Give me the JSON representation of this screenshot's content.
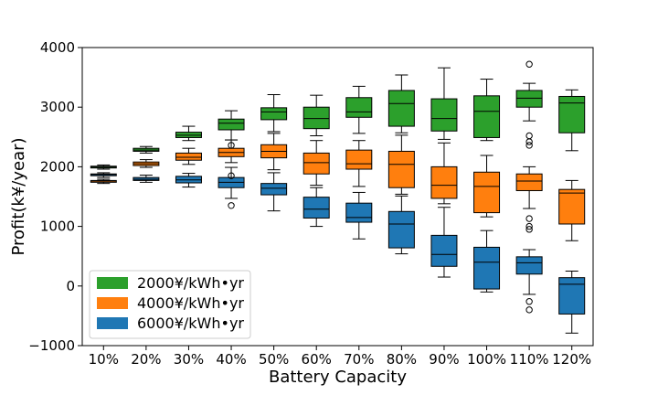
{
  "chart_data": {
    "type": "box",
    "xlabel": "Battery Capacity",
    "ylabel": "Profit(k¥/year)",
    "ylim": [
      -1000,
      4000
    ],
    "yticks": [
      -1000,
      0,
      1000,
      2000,
      3000,
      4000
    ],
    "ytick_labels": [
      "−1000",
      "0",
      "1000",
      "2000",
      "3000",
      "4000"
    ],
    "categories": [
      "10%",
      "20%",
      "30%",
      "40%",
      "50%",
      "60%",
      "70%",
      "80%",
      "90%",
      "100%",
      "110%",
      "120%"
    ],
    "grid": false,
    "legend": {
      "placement": "lower-left"
    },
    "series": [
      {
        "name": "2000¥/kWh•yr",
        "color": "#2ca02c",
        "boxes": [
          {
            "whislo": 1960,
            "q1": 1980,
            "med": 1995,
            "q3": 2010,
            "whishi": 2030,
            "fliers": []
          },
          {
            "whislo": 2230,
            "q1": 2260,
            "med": 2280,
            "q3": 2310,
            "whishi": 2340,
            "fliers": []
          },
          {
            "whislo": 2440,
            "q1": 2490,
            "med": 2530,
            "q3": 2580,
            "whishi": 2680,
            "fliers": []
          },
          {
            "whislo": 2450,
            "q1": 2620,
            "med": 2730,
            "q3": 2800,
            "whishi": 2940,
            "fliers": []
          },
          {
            "whislo": 2590,
            "q1": 2790,
            "med": 2920,
            "q3": 2990,
            "whishi": 3210,
            "fliers": []
          },
          {
            "whislo": 2520,
            "q1": 2640,
            "med": 2810,
            "q3": 3000,
            "whishi": 3200,
            "fliers": []
          },
          {
            "whislo": 2560,
            "q1": 2830,
            "med": 2920,
            "q3": 3160,
            "whishi": 3350,
            "fliers": []
          },
          {
            "whislo": 2570,
            "q1": 2680,
            "med": 3060,
            "q3": 3280,
            "whishi": 3540,
            "fliers": []
          },
          {
            "whislo": 2460,
            "q1": 2600,
            "med": 2810,
            "q3": 3140,
            "whishi": 3660,
            "fliers": []
          },
          {
            "whislo": 2440,
            "q1": 2490,
            "med": 2930,
            "q3": 3190,
            "whishi": 3470,
            "fliers": []
          },
          {
            "whislo": 2770,
            "q1": 3000,
            "med": 3150,
            "q3": 3280,
            "whishi": 3400,
            "fliers": [
              3720,
              2520,
              2420,
              2360
            ]
          },
          {
            "whislo": 2270,
            "q1": 2570,
            "med": 3070,
            "q3": 3180,
            "whishi": 3290,
            "fliers": []
          }
        ]
      },
      {
        "name": "4000¥/kWh•yr",
        "color": "#ff7f0e",
        "boxes": [
          {
            "whislo": 1720,
            "q1": 1740,
            "med": 1760,
            "q3": 1770,
            "whishi": 1790,
            "fliers": []
          },
          {
            "whislo": 1990,
            "q1": 2020,
            "med": 2050,
            "q3": 2080,
            "whishi": 2120,
            "fliers": []
          },
          {
            "whislo": 2040,
            "q1": 2110,
            "med": 2160,
            "q3": 2230,
            "whishi": 2310,
            "fliers": []
          },
          {
            "whislo": 2070,
            "q1": 2170,
            "med": 2240,
            "q3": 2310,
            "whishi": 2450,
            "fliers": [
              2360
            ]
          },
          {
            "whislo": 1950,
            "q1": 2150,
            "med": 2260,
            "q3": 2370,
            "whishi": 2560,
            "fliers": []
          },
          {
            "whislo": 1690,
            "q1": 1880,
            "med": 2070,
            "q3": 2230,
            "whishi": 2440,
            "fliers": []
          },
          {
            "whislo": 1670,
            "q1": 1960,
            "med": 2050,
            "q3": 2280,
            "whishi": 2440,
            "fliers": []
          },
          {
            "whislo": 1540,
            "q1": 1650,
            "med": 2040,
            "q3": 2260,
            "whishi": 2530,
            "fliers": []
          },
          {
            "whislo": 1380,
            "q1": 1470,
            "med": 1690,
            "q3": 2000,
            "whishi": 2400,
            "fliers": []
          },
          {
            "whislo": 1160,
            "q1": 1230,
            "med": 1670,
            "q3": 1910,
            "whishi": 2190,
            "fliers": []
          },
          {
            "whislo": 1300,
            "q1": 1600,
            "med": 1760,
            "q3": 1880,
            "whishi": 2000,
            "fliers": [
              1130,
              1000,
              950
            ]
          },
          {
            "whislo": 760,
            "q1": 1040,
            "med": 1560,
            "q3": 1620,
            "whishi": 1770,
            "fliers": []
          }
        ]
      },
      {
        "name": "6000¥/kWh•yr",
        "color": "#1f77b4",
        "boxes": [
          {
            "whislo": 1820,
            "q1": 1850,
            "med": 1870,
            "q3": 1880,
            "whishi": 1900,
            "fliers": []
          },
          {
            "whislo": 1740,
            "q1": 1770,
            "med": 1790,
            "q3": 1820,
            "whishi": 1860,
            "fliers": []
          },
          {
            "whislo": 1660,
            "q1": 1730,
            "med": 1780,
            "q3": 1840,
            "whishi": 1890,
            "fliers": []
          },
          {
            "whislo": 1470,
            "q1": 1650,
            "med": 1740,
            "q3": 1820,
            "whishi": 1990,
            "fliers": [
              1350,
              1850
            ]
          },
          {
            "whislo": 1260,
            "q1": 1530,
            "med": 1640,
            "q3": 1720,
            "whishi": 1900,
            "fliers": []
          },
          {
            "whislo": 1000,
            "q1": 1140,
            "med": 1290,
            "q3": 1490,
            "whishi": 1650,
            "fliers": []
          },
          {
            "whislo": 790,
            "q1": 1070,
            "med": 1150,
            "q3": 1390,
            "whishi": 1570,
            "fliers": []
          },
          {
            "whislo": 540,
            "q1": 640,
            "med": 1040,
            "q3": 1250,
            "whishi": 1510,
            "fliers": []
          },
          {
            "whislo": 150,
            "q1": 330,
            "med": 530,
            "q3": 850,
            "whishi": 1320,
            "fliers": []
          },
          {
            "whislo": -100,
            "q1": -50,
            "med": 400,
            "q3": 650,
            "whishi": 930,
            "fliers": []
          },
          {
            "whislo": -140,
            "q1": 200,
            "med": 390,
            "q3": 490,
            "whishi": 610,
            "fliers": [
              -260,
              -400
            ]
          },
          {
            "whislo": -790,
            "q1": -470,
            "med": 30,
            "q3": 140,
            "whishi": 250,
            "fliers": []
          }
        ]
      }
    ]
  }
}
